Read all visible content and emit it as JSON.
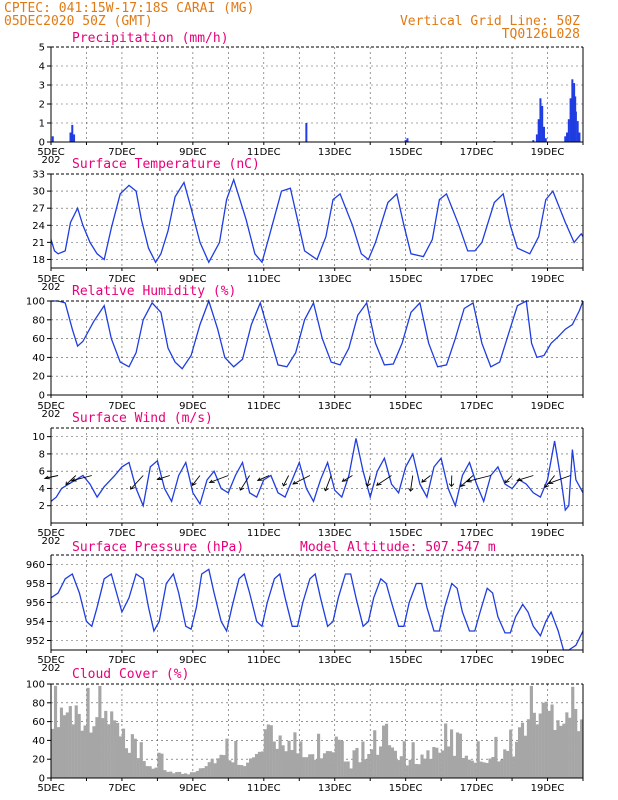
{
  "header": {
    "line1": "CPTEC:  041:15W-17:18S  CARAI (MG)",
    "line2": "05DEC2020 50Z (GMT)",
    "grid_note": "Vertical Grid Line: 50Z",
    "code": "TQ0126L028"
  },
  "colors": {
    "header": "#e07a14",
    "panel_title": "#e8007a",
    "series": "#1f3de0",
    "cloud": "#a6a6a6"
  },
  "x_ticks": [
    "5DEC",
    "7DEC",
    "9DEC",
    "11DEC",
    "13DEC",
    "15DEC",
    "17DEC",
    "19DEC"
  ],
  "x_overlap_stub": "202",
  "model_altitude": "Model Altitude: 507.547 m",
  "chart_data": [
    {
      "id": "precip",
      "type": "bar",
      "title": "Precipitation (mm/h)",
      "x_range_days": [
        5,
        20
      ],
      "ylim": [
        0,
        5
      ],
      "yticks": [
        0,
        1,
        2,
        3,
        4,
        5
      ],
      "bars": [
        [
          5.05,
          0.3
        ],
        [
          5.55,
          0.5
        ],
        [
          5.6,
          0.9
        ],
        [
          5.65,
          0.4
        ],
        [
          12.2,
          1.0
        ],
        [
          15.0,
          0.1
        ],
        [
          15.05,
          0.2
        ],
        [
          16.0,
          0.05
        ],
        [
          17.5,
          0.05
        ],
        [
          18.6,
          0.1
        ],
        [
          18.7,
          0.4
        ],
        [
          18.75,
          1.2
        ],
        [
          18.8,
          2.3
        ],
        [
          18.85,
          1.9
        ],
        [
          18.9,
          0.8
        ],
        [
          18.95,
          0.2
        ],
        [
          19.5,
          0.3
        ],
        [
          19.55,
          0.5
        ],
        [
          19.6,
          1.2
        ],
        [
          19.65,
          2.3
        ],
        [
          19.7,
          3.3
        ],
        [
          19.72,
          2.6
        ],
        [
          19.75,
          3.1
        ],
        [
          19.78,
          2.4
        ],
        [
          19.8,
          1.6
        ],
        [
          19.85,
          1.1
        ],
        [
          19.9,
          0.5
        ]
      ]
    },
    {
      "id": "temp",
      "type": "line",
      "title": "Surface Temperature (nC)",
      "x_range_days": [
        5,
        20
      ],
      "ylim": [
        16.5,
        33
      ],
      "yticks": [
        18,
        21,
        24,
        27,
        30,
        33
      ],
      "series": [
        {
          "x": [
            5.0,
            5.1,
            5.2,
            5.4,
            5.55,
            5.75,
            5.9,
            6.1,
            6.3,
            6.5,
            6.7,
            6.95,
            7.2,
            7.4,
            7.55,
            7.75,
            7.95,
            8.1,
            8.3,
            8.5,
            8.75,
            8.95,
            9.2,
            9.45,
            9.75,
            9.95,
            10.15,
            10.5,
            10.75,
            10.95,
            11.15,
            11.5,
            11.75,
            11.95,
            12.15,
            12.5,
            12.75,
            12.95,
            13.15,
            13.5,
            13.75,
            13.95,
            14.15,
            14.5,
            14.75,
            14.95,
            15.15,
            15.5,
            15.75,
            15.95,
            16.15,
            16.5,
            16.75,
            16.95,
            17.15,
            17.5,
            17.75,
            17.95,
            18.15,
            18.5,
            18.75,
            18.95,
            19.15,
            19.5,
            19.75,
            19.95,
            20.0
          ],
          "values": [
            21.5,
            19.5,
            19.0,
            19.5,
            24.5,
            27.0,
            24.0,
            21.0,
            19.0,
            18.0,
            23.5,
            29.5,
            31.0,
            30.0,
            25.0,
            20.0,
            17.5,
            19.0,
            23.0,
            29.0,
            31.5,
            27.0,
            21.0,
            17.5,
            21.0,
            28.5,
            32.0,
            25.0,
            19.0,
            17.5,
            22.0,
            30.0,
            30.5,
            25.0,
            19.5,
            18.0,
            22.0,
            28.5,
            29.5,
            24.0,
            19.0,
            18.0,
            21.0,
            28.0,
            29.5,
            24.0,
            19.0,
            18.5,
            21.5,
            28.5,
            29.5,
            24.0,
            19.5,
            19.5,
            21.0,
            28.0,
            29.5,
            24.0,
            20.0,
            19.0,
            22.0,
            28.5,
            30.0,
            24.5,
            21.0,
            22.5,
            22.0
          ]
        }
      ]
    },
    {
      "id": "rh",
      "type": "line",
      "title": "Relative Humidity (%)",
      "x_range_days": [
        5,
        20
      ],
      "ylim": [
        0,
        100
      ],
      "yticks": [
        0,
        20,
        40,
        60,
        80,
        100
      ],
      "series": [
        {
          "x": [
            5.0,
            5.2,
            5.4,
            5.6,
            5.75,
            5.9,
            6.2,
            6.5,
            6.7,
            6.95,
            7.2,
            7.4,
            7.6,
            7.85,
            8.1,
            8.3,
            8.5,
            8.7,
            8.95,
            9.2,
            9.45,
            9.7,
            9.9,
            10.15,
            10.4,
            10.65,
            10.9,
            11.15,
            11.4,
            11.65,
            11.9,
            12.15,
            12.4,
            12.65,
            12.9,
            13.15,
            13.4,
            13.65,
            13.9,
            14.15,
            14.4,
            14.65,
            14.9,
            15.15,
            15.4,
            15.65,
            15.9,
            16.15,
            16.4,
            16.65,
            16.9,
            17.15,
            17.4,
            17.65,
            17.9,
            18.15,
            18.4,
            18.55,
            18.7,
            18.9,
            19.1,
            19.3,
            19.5,
            19.7,
            19.9,
            20.0
          ],
          "values": [
            100,
            100,
            98,
            70,
            52,
            57,
            78,
            95,
            60,
            35,
            30,
            45,
            80,
            98,
            88,
            50,
            35,
            28,
            42,
            75,
            100,
            70,
            40,
            30,
            38,
            75,
            98,
            65,
            32,
            30,
            45,
            80,
            98,
            60,
            35,
            32,
            50,
            85,
            98,
            55,
            32,
            33,
            55,
            88,
            98,
            55,
            30,
            32,
            60,
            92,
            98,
            55,
            30,
            35,
            65,
            95,
            100,
            55,
            40,
            42,
            55,
            62,
            70,
            75,
            90,
            100
          ]
        }
      ]
    },
    {
      "id": "wind",
      "type": "line",
      "title": "Surface Wind (m/s)",
      "x_range_days": [
        5,
        20
      ],
      "ylim": [
        0,
        11
      ],
      "yticks": [
        2,
        4,
        6,
        8,
        10
      ],
      "series": [
        {
          "x": [
            5.0,
            5.15,
            5.3,
            5.5,
            5.7,
            5.9,
            6.1,
            6.3,
            6.5,
            6.8,
            7.0,
            7.2,
            7.4,
            7.6,
            7.8,
            8.0,
            8.2,
            8.4,
            8.6,
            8.8,
            9.0,
            9.2,
            9.4,
            9.6,
            9.8,
            10.0,
            10.2,
            10.4,
            10.6,
            10.8,
            11.0,
            11.2,
            11.4,
            11.6,
            11.8,
            12.0,
            12.2,
            12.4,
            12.6,
            12.8,
            13.0,
            13.2,
            13.4,
            13.6,
            13.8,
            14.0,
            14.2,
            14.4,
            14.6,
            14.8,
            15.0,
            15.2,
            15.4,
            15.6,
            15.8,
            16.0,
            16.2,
            16.4,
            16.6,
            16.8,
            17.0,
            17.2,
            17.4,
            17.6,
            17.8,
            18.0,
            18.2,
            18.4,
            18.6,
            18.8,
            19.0,
            19.2,
            19.4,
            19.5,
            19.6,
            19.7,
            19.8,
            20.0
          ],
          "values": [
            2.5,
            3.0,
            4.0,
            4.5,
            5.0,
            5.5,
            4.5,
            3.0,
            4.2,
            5.5,
            6.5,
            7.0,
            4.0,
            2.0,
            6.5,
            7.2,
            4.0,
            2.5,
            5.5,
            7.0,
            3.5,
            2.2,
            5.0,
            6.0,
            4.0,
            3.5,
            5.5,
            7.0,
            3.5,
            3.0,
            5.0,
            5.5,
            3.5,
            3.0,
            5.0,
            7.0,
            4.0,
            2.5,
            5.0,
            7.0,
            3.8,
            3.0,
            5.5,
            9.8,
            6.0,
            3.0,
            6.0,
            7.5,
            4.5,
            3.5,
            6.5,
            8.0,
            4.5,
            3.0,
            6.5,
            7.5,
            4.0,
            2.0,
            5.5,
            7.0,
            4.5,
            2.5,
            5.5,
            6.5,
            4.5,
            4.0,
            5.0,
            4.5,
            3.5,
            3.0,
            5.0,
            9.5,
            4.5,
            1.5,
            2.0,
            8.5,
            5.0,
            3.5
          ]
        }
      ],
      "arrows_x": [
        5.2,
        5.7,
        6.15,
        7.6,
        8.35,
        9.2,
        10.0,
        10.6,
        11.15,
        11.7,
        12.3,
        12.9,
        13.5,
        14.0,
        14.6,
        15.2,
        15.7,
        16.3,
        16.9,
        17.4,
        18.0,
        18.6,
        19.2,
        19.65
      ],
      "arrow_level": 5.5
    },
    {
      "id": "pressure",
      "type": "line",
      "title": "Surface Pressure (hPa)",
      "x_range_days": [
        5,
        20
      ],
      "ylim": [
        951,
        961
      ],
      "yticks": [
        952,
        954,
        956,
        958,
        960
      ],
      "series": [
        {
          "x": [
            5.0,
            5.2,
            5.4,
            5.6,
            5.8,
            6.0,
            6.15,
            6.3,
            6.5,
            6.7,
            6.85,
            7.0,
            7.2,
            7.4,
            7.6,
            7.75,
            7.9,
            8.05,
            8.25,
            8.45,
            8.6,
            8.8,
            8.95,
            9.1,
            9.25,
            9.45,
            9.6,
            9.8,
            9.95,
            10.1,
            10.3,
            10.45,
            10.6,
            10.8,
            10.95,
            11.1,
            11.3,
            11.45,
            11.6,
            11.8,
            11.95,
            12.1,
            12.3,
            12.45,
            12.6,
            12.8,
            12.95,
            13.1,
            13.3,
            13.45,
            13.6,
            13.8,
            13.95,
            14.1,
            14.3,
            14.45,
            14.6,
            14.8,
            14.95,
            15.1,
            15.3,
            15.45,
            15.6,
            15.8,
            15.95,
            16.1,
            16.3,
            16.45,
            16.6,
            16.8,
            16.95,
            17.1,
            17.3,
            17.45,
            17.6,
            17.8,
            17.95,
            18.1,
            18.3,
            18.45,
            18.6,
            18.8,
            18.95,
            19.1,
            19.3,
            19.45,
            19.6,
            19.8,
            20.0
          ],
          "values": [
            956.5,
            957.0,
            958.5,
            959.0,
            957.0,
            954.0,
            953.5,
            955.5,
            958.5,
            959.0,
            957.0,
            955.0,
            956.5,
            959.0,
            958.5,
            955.5,
            953.0,
            954.0,
            958.0,
            959.0,
            957.0,
            953.5,
            953.2,
            955.5,
            959.0,
            959.5,
            957.0,
            954.0,
            953.0,
            955.5,
            958.5,
            959.0,
            957.0,
            954.0,
            953.5,
            956.0,
            958.5,
            959.0,
            956.5,
            953.5,
            953.5,
            956.0,
            958.5,
            959.0,
            956.5,
            953.5,
            954.0,
            956.5,
            959.0,
            959.0,
            956.5,
            953.5,
            954.0,
            956.5,
            958.5,
            958.0,
            956.0,
            953.5,
            953.5,
            956.0,
            958.0,
            958.0,
            955.5,
            953.0,
            953.0,
            955.5,
            958.0,
            957.5,
            955.0,
            953.0,
            953.0,
            955.0,
            957.5,
            957.0,
            954.5,
            952.8,
            952.8,
            954.5,
            955.8,
            955.0,
            953.5,
            952.5,
            954.0,
            955.0,
            953.0,
            951.0,
            951.0,
            951.5,
            953.0
          ]
        }
      ]
    },
    {
      "id": "cloud",
      "type": "bar",
      "title": "Cloud Cover (%)",
      "x_range_days": [
        5,
        20
      ],
      "ylim": [
        0,
        100
      ],
      "yticks": [
        0,
        20,
        40,
        60,
        80,
        100
      ],
      "profile_x": [
        5.0,
        5.5,
        6.0,
        6.5,
        6.8,
        7.0,
        7.3,
        7.6,
        8.0,
        8.5,
        8.8,
        9.0,
        9.5,
        10.0,
        10.5,
        11.0,
        11.5,
        12.0,
        12.5,
        13.0,
        13.5,
        14.0,
        14.5,
        15.0,
        15.5,
        16.0,
        16.5,
        17.0,
        17.5,
        18.0,
        18.2,
        18.5,
        19.0,
        19.5,
        20.0
      ],
      "profile_values": [
        95,
        92,
        88,
        85,
        75,
        40,
        30,
        20,
        12,
        8,
        5,
        10,
        25,
        30,
        20,
        40,
        55,
        25,
        35,
        30,
        15,
        35,
        45,
        20,
        30,
        45,
        35,
        25,
        30,
        40,
        65,
        90,
        92,
        90,
        88
      ]
    }
  ]
}
